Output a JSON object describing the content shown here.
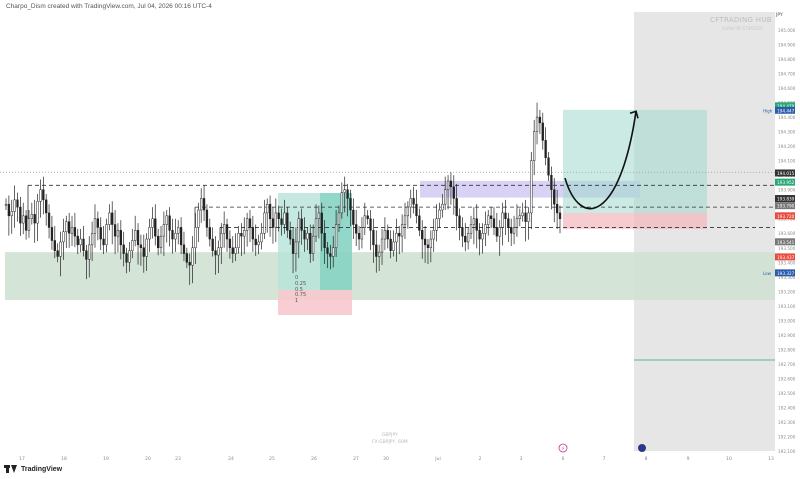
{
  "header": {
    "caption": "Charpo_Dism created with TradingView.com, Jul 04, 2026 00:16 UTC-4"
  },
  "watermark": {
    "title": "CFTRADING HUB",
    "subtitle": "ALPHA BY STRATEGY",
    "symbol_line1": "GBPJPY",
    "symbol_line2": "FX:GBPJPY, 60M"
  },
  "branding": {
    "name": "TradingView"
  },
  "price_axis": {
    "currency": "JPY"
  },
  "chart_data": {
    "type": "candlestick",
    "title": "",
    "xlabel": "",
    "ylabel": "",
    "x_ticks": [
      "17",
      "18",
      "19",
      "20",
      "23",
      "24",
      "25",
      "26",
      "27",
      "30",
      "Jul",
      "2",
      "3",
      "6",
      "7",
      "8",
      "9",
      "10",
      "13"
    ],
    "y_ticks": [
      "195.000",
      "194.900",
      "194.800",
      "194.700",
      "194.600",
      "194.500",
      "194.400",
      "194.300",
      "194.200",
      "194.100",
      "194.000",
      "193.900",
      "193.800",
      "193.700",
      "193.600",
      "193.500",
      "193.400",
      "193.300",
      "193.200",
      "193.100",
      "193.000",
      "192.900",
      "192.800",
      "192.700",
      "192.600",
      "192.500",
      "192.400",
      "192.300",
      "192.200",
      "192.100"
    ],
    "ylim": [
      192.08,
      195.14
    ],
    "price_labels": [
      {
        "text": "194.478",
        "price": 194.478,
        "color": "#2aa876"
      },
      {
        "text": "194.447",
        "price": 194.447,
        "color": "#ffffff",
        "kind": "high"
      },
      {
        "text": "194.015",
        "price": 194.015,
        "color": "#333333"
      },
      {
        "text": "193.952",
        "price": 193.952,
        "color": "#2aa876"
      },
      {
        "text": "193.839",
        "price": 193.839,
        "color": "#333333"
      },
      {
        "text": "193.790",
        "price": 193.79,
        "color": "#777777"
      },
      {
        "text": "193.720",
        "price": 193.72,
        "color": "#e74c3c"
      },
      {
        "text": "193.541",
        "price": 193.541,
        "color": "#777777"
      },
      {
        "text": "193.437",
        "price": 193.437,
        "color": "#e74c3c"
      },
      {
        "text": "193.327",
        "price": 193.327,
        "color": "#2a5caa",
        "kind": "low"
      }
    ],
    "levels": [
      {
        "price": 194.02,
        "style": "dotted",
        "color": "#9a9a9a"
      },
      {
        "price": 193.93,
        "style": "dashed",
        "color": "#333333"
      },
      {
        "price": 193.78,
        "style": "dashed",
        "color": "#333333"
      },
      {
        "price": 193.64,
        "style": "dashed",
        "color": "#333333"
      }
    ],
    "fib_labels": [
      "0",
      "0.25",
      "0.5",
      "0.75",
      "1"
    ],
    "zones": {
      "demand": {
        "top": 193.47,
        "bottom": 193.14,
        "color": "#cfe2d3"
      },
      "supply": {
        "top": 193.94,
        "bottom": 193.88,
        "color": "#d9d2f5"
      }
    },
    "position": {
      "type": "long",
      "entry": 193.74,
      "target": 194.45,
      "stop": 193.63
    },
    "series": [
      {
        "values": [
          193.8,
          193.72,
          193.75,
          193.83,
          193.78,
          193.67,
          193.72,
          193.62,
          193.7,
          193.73,
          193.67,
          193.82,
          193.9,
          193.83,
          193.74,
          193.64,
          193.55,
          193.48,
          193.44,
          193.54,
          193.61,
          193.68,
          193.6,
          193.64,
          193.58,
          193.52,
          193.56,
          193.48,
          193.42,
          193.52,
          193.6,
          193.7,
          193.64,
          193.56,
          193.52,
          193.66,
          193.74,
          193.66,
          193.58,
          193.62,
          193.52,
          193.46,
          193.4,
          193.48,
          193.55,
          193.62,
          193.52,
          193.5,
          193.44,
          193.56,
          193.64,
          193.7,
          193.58,
          193.5,
          193.58,
          193.66,
          193.72,
          193.62,
          193.56,
          193.6,
          193.64,
          193.52,
          193.46,
          193.4,
          193.38,
          193.5,
          193.64,
          193.76,
          193.84,
          193.76,
          193.64,
          193.56,
          193.48,
          193.45,
          193.5,
          193.6,
          193.66,
          193.56,
          193.5,
          193.46,
          193.5,
          193.6,
          193.58,
          193.62,
          193.7,
          193.64,
          193.56,
          193.52,
          193.54,
          193.6,
          193.74,
          193.8,
          193.7,
          193.64,
          193.74,
          193.7,
          193.66,
          193.74,
          193.62,
          193.56,
          193.46,
          193.54,
          193.7,
          193.62,
          193.56,
          193.6,
          193.46,
          193.58,
          193.7,
          193.74,
          193.6,
          193.5,
          193.46,
          193.44,
          193.5,
          193.66,
          193.74,
          193.88,
          193.9,
          193.84,
          193.76,
          193.66,
          193.6,
          193.56,
          193.64,
          193.72,
          193.7,
          193.62,
          193.52,
          193.44,
          193.47,
          193.56,
          193.62,
          193.56,
          193.48,
          193.54,
          193.6,
          193.58,
          193.66,
          193.72,
          193.78,
          193.84,
          193.8,
          193.72,
          193.62,
          193.56,
          193.52,
          193.5,
          193.56,
          193.62,
          193.7,
          193.76,
          193.8,
          193.9,
          193.96,
          193.92,
          193.84,
          193.72,
          193.64,
          193.58,
          193.54,
          193.6,
          193.66,
          193.7,
          193.62,
          193.56,
          193.6,
          193.66,
          193.72,
          193.7,
          193.64,
          193.58,
          193.64,
          193.74,
          193.7,
          193.64,
          193.6,
          193.64,
          193.7,
          193.72,
          193.74,
          193.68,
          193.74,
          194.1,
          194.3,
          194.4,
          194.36,
          194.24,
          194.12,
          194.0,
          193.9,
          193.8,
          193.74,
          193.7
        ]
      }
    ],
    "curve_arrow": {
      "from_price": 193.98,
      "to_price": 194.44,
      "low_price": 193.75
    }
  }
}
